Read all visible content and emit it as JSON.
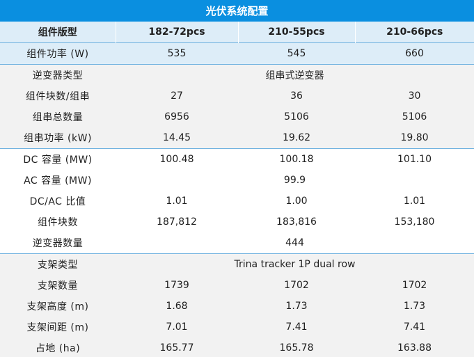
{
  "title": "光伏系统配置",
  "header": {
    "label": "组件版型",
    "columns": [
      "182-72pcs",
      "210-55pcs",
      "210-66pcs"
    ]
  },
  "rows": [
    {
      "label": "组件功率 (W)",
      "values": [
        "535",
        "545",
        "660"
      ]
    },
    {
      "label": "逆变器类型",
      "merged": "组串式逆变器"
    },
    {
      "label": "组件块数/组串",
      "values": [
        "27",
        "36",
        "30"
      ]
    },
    {
      "label": "组串总数量",
      "values": [
        "6956",
        "5106",
        "5106"
      ]
    },
    {
      "label": "组串功率 (kW)",
      "values": [
        "14.45",
        "19.62",
        "19.80"
      ]
    },
    {
      "label": "DC 容量 (MW)",
      "values": [
        "100.48",
        "100.18",
        "101.10"
      ]
    },
    {
      "label": "AC 容量 (MW)",
      "merged": "99.9"
    },
    {
      "label": "DC/AC 比值",
      "values": [
        "1.01",
        "1.00",
        "1.01"
      ]
    },
    {
      "label": "组件块数",
      "values": [
        "187,812",
        "183,816",
        "153,180"
      ]
    },
    {
      "label": "逆变器数量",
      "merged": "444"
    },
    {
      "label": "支架类型",
      "merged": "Trina tracker 1P dual row"
    },
    {
      "label": "支架数量",
      "values": [
        "1739",
        "1702",
        "1702"
      ]
    },
    {
      "label": "支架高度 (m)",
      "values": [
        "1.68",
        "1.73",
        "1.73"
      ]
    },
    {
      "label": "支架间距 (m)",
      "values": [
        "7.01",
        "7.41",
        "7.41"
      ]
    },
    {
      "label": "占地 (ha)",
      "values": [
        "165.77",
        "165.78",
        "163.88"
      ]
    }
  ],
  "colors": {
    "title_bg": "#0a8fe0",
    "header_bg": "#ddedf8",
    "band_gray": "#f2f2f2",
    "divider": "#6fb2e0"
  }
}
